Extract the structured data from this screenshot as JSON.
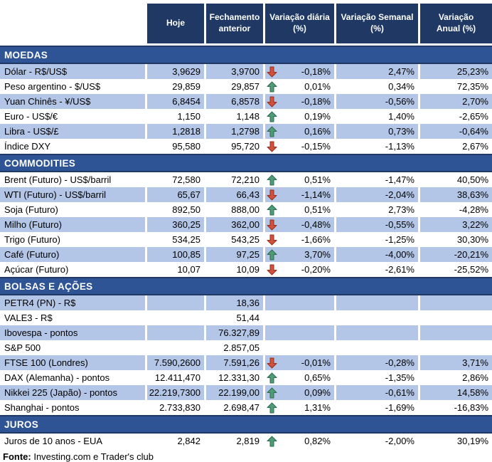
{
  "chart_data": {
    "type": "table",
    "title": "",
    "columns": [
      "Hoje",
      "Fechamento anterior",
      "Variação diária (%)",
      "Variação Semanal (%)",
      "Variação Anual (%)"
    ],
    "sections": [
      {
        "title": "MOEDAS",
        "stripe_first": "alt",
        "rows": [
          {
            "label": "Dólar - R$/US$",
            "hoje": "3,9629",
            "fechamento": "3,9700",
            "arrow": "down-arrow-icon",
            "var_diaria": "-0,18%",
            "var_semanal": "2,47%",
            "var_anual": "25,23%"
          },
          {
            "label": "Peso argentino - $/US$",
            "hoje": "29,859",
            "fechamento": "29,857",
            "arrow": "up-arrow-icon",
            "var_diaria": "0,01%",
            "var_semanal": "0,34%",
            "var_anual": "72,35%"
          },
          {
            "label": "Yuan Chinês - ¥/US$",
            "hoje": "6,8454",
            "fechamento": "6,8578",
            "arrow": "down-arrow-icon",
            "var_diaria": "-0,18%",
            "var_semanal": "-0,56%",
            "var_anual": "2,70%"
          },
          {
            "label": "Euro - US$/€",
            "hoje": "1,150",
            "fechamento": "1,148",
            "arrow": "up-arrow-icon",
            "var_diaria": "0,19%",
            "var_semanal": "1,40%",
            "var_anual": "-2,65%"
          },
          {
            "label": "Libra - US$/£",
            "hoje": "1,2818",
            "fechamento": "1,2798",
            "arrow": "up-arrow-icon",
            "var_diaria": "0,16%",
            "var_semanal": "0,73%",
            "var_anual": "-0,64%"
          },
          {
            "label": "Índice DXY",
            "hoje": "95,580",
            "fechamento": "95,720",
            "arrow": "down-arrow-icon",
            "var_diaria": "-0,15%",
            "var_semanal": "-1,13%",
            "var_anual": "2,67%"
          }
        ]
      },
      {
        "title": "COMMODITIES",
        "stripe_first": "plain",
        "rows": [
          {
            "label": "Brent (Futuro) - US$/barril",
            "hoje": "72,580",
            "fechamento": "72,210",
            "arrow": "up-arrow-icon",
            "var_diaria": "0,51%",
            "var_semanal": "-1,47%",
            "var_anual": "40,50%"
          },
          {
            "label": "WTI (Futuro) - US$/barril",
            "hoje": "65,67",
            "fechamento": "66,43",
            "arrow": "down-arrow-icon",
            "var_diaria": "-1,14%",
            "var_semanal": "-2,04%",
            "var_anual": "38,63%"
          },
          {
            "label": "Soja (Futuro)",
            "hoje": "892,50",
            "fechamento": "888,00",
            "arrow": "up-arrow-icon",
            "var_diaria": "0,51%",
            "var_semanal": "2,73%",
            "var_anual": "-4,28%"
          },
          {
            "label": "Milho (Futuro)",
            "hoje": "360,25",
            "fechamento": "362,00",
            "arrow": "down-arrow-icon",
            "var_diaria": "-0,48%",
            "var_semanal": "-0,55%",
            "var_anual": "3,22%"
          },
          {
            "label": "Trigo (Futuro)",
            "hoje": "534,25",
            "fechamento": "543,25",
            "arrow": "down-arrow-icon",
            "var_diaria": "-1,66%",
            "var_semanal": "-1,25%",
            "var_anual": "30,30%"
          },
          {
            "label": "Café (Futuro)",
            "hoje": "100,85",
            "fechamento": "97,25",
            "arrow": "up-arrow-icon",
            "var_diaria": "3,70%",
            "var_semanal": "-4,00%",
            "var_anual": "-20,21%"
          },
          {
            "label": "Açúcar (Futuro)",
            "hoje": "10,07",
            "fechamento": "10,09",
            "arrow": "down-arrow-icon",
            "var_diaria": "-0,20%",
            "var_semanal": "-2,61%",
            "var_anual": "-25,52%"
          }
        ]
      },
      {
        "title": "BOLSAS E AÇÕES",
        "stripe_first": "alt",
        "rows": [
          {
            "label": "PETR4 (PN) - R$",
            "hoje": "",
            "fechamento": "18,36",
            "arrow": "",
            "var_diaria": "",
            "var_semanal": "",
            "var_anual": ""
          },
          {
            "label": "VALE3 - R$",
            "hoje": "",
            "fechamento": "51,44",
            "arrow": "",
            "var_diaria": "",
            "var_semanal": "",
            "var_anual": ""
          },
          {
            "label": "Ibovespa - pontos",
            "hoje": "",
            "fechamento": "76.327,89",
            "arrow": "",
            "var_diaria": "",
            "var_semanal": "",
            "var_anual": ""
          },
          {
            "label": "S&P 500",
            "hoje": "",
            "fechamento": "2.857,05",
            "arrow": "",
            "var_diaria": "",
            "var_semanal": "",
            "var_anual": ""
          },
          {
            "label": "FTSE 100 (Londres)",
            "hoje": "7.590,2600",
            "fechamento": "7.591,26",
            "arrow": "down-arrow-icon",
            "var_diaria": "-0,01%",
            "var_semanal": "-0,28%",
            "var_anual": "3,71%"
          },
          {
            "label": "DAX (Alemanha) - pontos",
            "hoje": "12.411,470",
            "fechamento": "12.331,30",
            "arrow": "up-arrow-icon",
            "var_diaria": "0,65%",
            "var_semanal": "-1,35%",
            "var_anual": "2,86%"
          },
          {
            "label": "Nikkei 225 (Japão) - pontos",
            "hoje": "22.219,7300",
            "fechamento": "22.199,00",
            "arrow": "up-arrow-icon",
            "var_diaria": "0,09%",
            "var_semanal": "-0,61%",
            "var_anual": "14,58%"
          },
          {
            "label": "Shanghai - pontos",
            "hoje": "2.733,830",
            "fechamento": "2.698,47",
            "arrow": "up-arrow-icon",
            "var_diaria": "1,31%",
            "var_semanal": "-1,69%",
            "var_anual": "-16,83%"
          }
        ]
      },
      {
        "title": "JUROS",
        "stripe_first": "plain",
        "rows": [
          {
            "label": "Juros de 10 anos - EUA",
            "hoje": "2,842",
            "fechamento": "2,819",
            "arrow": "up-arrow-icon",
            "var_diaria": "0,82%",
            "var_semanal": "-2,00%",
            "var_anual": "30,19%"
          }
        ]
      }
    ]
  },
  "footer": {
    "fonte_label": "Fonte:",
    "fonte_text": " Investing.com e Trader's club"
  },
  "colors": {
    "header_bg": "#1F3864",
    "section_bg": "#2F5496",
    "row_alt_bg": "#B4C6E7",
    "header_text": "#FFFFFF",
    "body_text": "#000000",
    "arrow_up_fill": "#4E9C76",
    "arrow_up_border": "#2E6B4F",
    "arrow_down_fill": "#D0513C",
    "arrow_down_border": "#93301F"
  }
}
